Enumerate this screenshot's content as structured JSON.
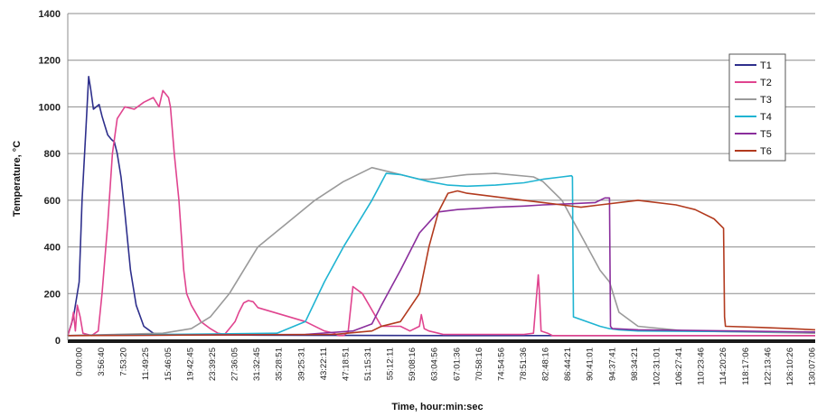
{
  "chart_data": {
    "type": "line",
    "title": "",
    "xlabel": "Time, hour:min:sec",
    "ylabel": "Temperature, °C",
    "ylim": [
      0,
      1400
    ],
    "yticks": [
      0,
      200,
      400,
      600,
      800,
      1000,
      1200,
      1400
    ],
    "x_unit": "minutes",
    "xlim": [
      0,
      7864
    ],
    "xtick_labels": [
      "0:00:00",
      "3:56:40",
      "7:53:20",
      "11:49:25",
      "15:46:05",
      "19:42:45",
      "23:39:25",
      "27:36:05",
      "31:32:45",
      "35:28:51",
      "39:25:31",
      "43:22:11",
      "47:18:51",
      "51:15:31",
      "55:12:11",
      "59:08:16",
      "63:04:56",
      "67:01:36",
      "70:58:16",
      "74:54:56",
      "78:51:36",
      "82:48:16",
      "86:44:21",
      "90:41:01",
      "94:37:41",
      "98:34:21",
      "102:31:01",
      "106:27:41",
      "110:23:46",
      "114:20:26",
      "118:17:06",
      "122:13:46",
      "126:10:26",
      "130:07:06"
    ],
    "grid": true,
    "legend_position": "right",
    "colors": {
      "T1": "#2e2f8c",
      "T2": "#e0448f",
      "T3": "#9a9a9a",
      "T4": "#1fb4d2",
      "T5": "#8a2e9c",
      "T6": "#b23a1e"
    },
    "series": [
      {
        "name": "T1",
        "x": [
          0,
          60,
          120,
          150,
          190,
          220,
          240,
          270,
          300,
          330,
          360,
          390,
          420,
          460,
          490,
          520,
          560,
          600,
          660,
          720,
          800,
          900,
          1000,
          2000,
          4000,
          7864
        ],
        "y": [
          20,
          100,
          250,
          600,
          900,
          1130,
          1080,
          990,
          1000,
          1010,
          960,
          920,
          880,
          860,
          850,
          800,
          700,
          550,
          300,
          150,
          60,
          30,
          25,
          22,
          20,
          20
        ]
      },
      {
        "name": "T2",
        "x": [
          0,
          40,
          60,
          80,
          100,
          130,
          160,
          250,
          320,
          360,
          420,
          470,
          520,
          600,
          700,
          800,
          900,
          960,
          1000,
          1060,
          1080,
          1120,
          1170,
          1220,
          1250,
          1300,
          1400,
          1500,
          1580,
          1650,
          1700,
          1760,
          1800,
          1850,
          1900,
          1950,
          2000,
          2500,
          2700,
          2800,
          2850,
          2900,
          2950,
          3000,
          3100,
          3300,
          3500,
          3600,
          3700,
          3720,
          3750,
          3800,
          3900,
          3950,
          4000,
          4100,
          4200,
          4400,
          4600,
          4700,
          4800,
          4900,
          4950,
          4960,
          4980,
          5050,
          5100,
          5200,
          5300,
          7864
        ],
        "y": [
          20,
          70,
          120,
          40,
          150,
          100,
          30,
          20,
          40,
          200,
          500,
          800,
          950,
          1000,
          990,
          1020,
          1040,
          1000,
          1070,
          1040,
          1000,
          800,
          600,
          300,
          200,
          150,
          80,
          50,
          30,
          25,
          50,
          80,
          120,
          160,
          170,
          165,
          140,
          80,
          40,
          30,
          20,
          20,
          35,
          230,
          200,
          60,
          60,
          40,
          60,
          110,
          50,
          40,
          30,
          25,
          25,
          25,
          25,
          25,
          25,
          25,
          25,
          30,
          280,
          220,
          40,
          30,
          20,
          20,
          20,
          20
        ]
      },
      {
        "name": "T3",
        "x": [
          0,
          1000,
          1300,
          1500,
          1700,
          2000,
          2300,
          2600,
          2900,
          3200,
          3400,
          3600,
          3700,
          3800,
          4000,
          4200,
          4500,
          4900,
          5000,
          5200,
          5400,
          5600,
          5700,
          5800,
          6000,
          6500,
          7864
        ],
        "y": [
          20,
          30,
          50,
          100,
          200,
          400,
          500,
          600,
          680,
          740,
          720,
          700,
          690,
          690,
          700,
          710,
          715,
          700,
          680,
          600,
          450,
          300,
          250,
          120,
          60,
          40,
          30
        ]
      },
      {
        "name": "T4",
        "x": [
          0,
          2200,
          2500,
          2700,
          2900,
          3200,
          3350,
          3500,
          3600,
          3800,
          4000,
          4200,
          4500,
          4800,
          5000,
          5200,
          5300,
          5310,
          5320,
          5600,
          5700,
          5800,
          6000,
          7864
        ],
        "y": [
          20,
          30,
          80,
          250,
          400,
          600,
          715,
          710,
          700,
          680,
          665,
          660,
          665,
          675,
          690,
          700,
          705,
          700,
          100,
          60,
          50,
          45,
          40,
          35
        ]
      },
      {
        "name": "T5",
        "x": [
          0,
          2500,
          3000,
          3200,
          3300,
          3500,
          3700,
          3900,
          4100,
          4300,
          4500,
          4800,
          5000,
          5300,
          5550,
          5650,
          5700,
          5710,
          5730,
          6000,
          7000,
          7864
        ],
        "y": [
          20,
          25,
          40,
          70,
          150,
          300,
          460,
          550,
          560,
          565,
          570,
          575,
          580,
          585,
          590,
          610,
          610,
          60,
          50,
          45,
          40,
          35
        ]
      },
      {
        "name": "T6",
        "x": [
          0,
          2800,
          3200,
          3300,
          3500,
          3700,
          3800,
          3900,
          4000,
          4100,
          4200,
          4400,
          4600,
          4800,
          5000,
          5200,
          5400,
          5600,
          6000,
          6400,
          6600,
          6800,
          6900,
          6910,
          6920,
          7300,
          7600,
          7864
        ],
        "y": [
          20,
          25,
          40,
          60,
          80,
          200,
          400,
          550,
          630,
          640,
          630,
          620,
          610,
          600,
          590,
          580,
          570,
          580,
          600,
          580,
          560,
          520,
          480,
          100,
          60,
          55,
          50,
          45
        ]
      }
    ]
  }
}
